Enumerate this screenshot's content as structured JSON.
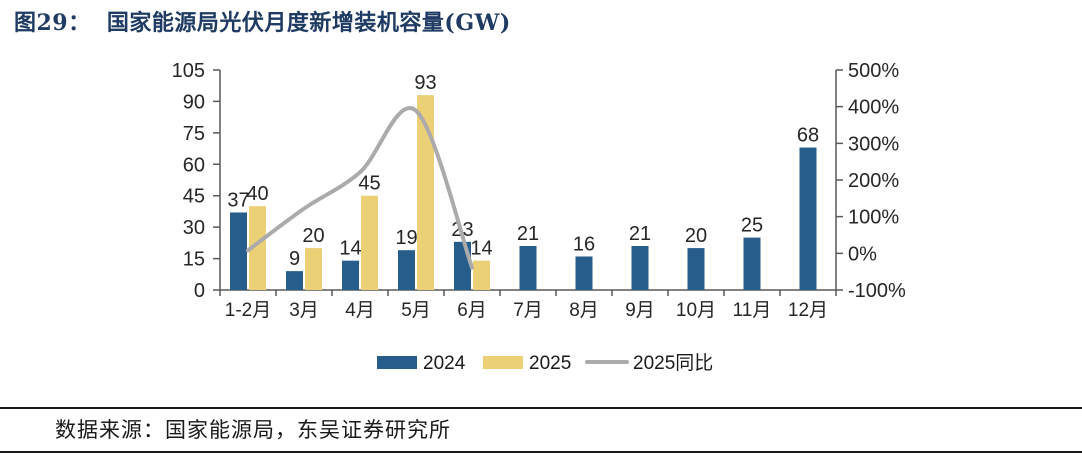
{
  "title": "图29：  国家能源局光伏月度新增装机容量(GW)",
  "source": "数据来源：国家能源局，东吴证券研究所",
  "colors": {
    "title_navy": "#1F3B63",
    "bar_2024": "#265D8B",
    "bar_2025": "#ECD076",
    "line_yoy": "#ABABAB",
    "axis": "#595959",
    "text": "#262626"
  },
  "chart_data": {
    "type": "bar",
    "title": "国家能源局光伏月度新增装机容量(GW)",
    "categories": [
      "1-2月",
      "3月",
      "4月",
      "5月",
      "6月",
      "7月",
      "8月",
      "9月",
      "10月",
      "11月",
      "12月"
    ],
    "series": [
      {
        "name": "2024",
        "type": "bar",
        "axis": "left",
        "color": "#265D8B",
        "values": [
          37,
          9,
          14,
          19,
          23,
          21,
          16,
          21,
          20,
          25,
          68
        ]
      },
      {
        "name": "2025",
        "type": "bar",
        "axis": "left",
        "color": "#ECD076",
        "values": [
          40,
          20,
          45,
          93,
          14,
          null,
          null,
          null,
          null,
          null,
          null
        ]
      },
      {
        "name": "2025同比",
        "type": "line",
        "axis": "right",
        "unit": "%",
        "color": "#ABABAB",
        "values": [
          8,
          122,
          221,
          389,
          -39,
          null,
          null,
          null,
          null,
          null,
          null
        ]
      }
    ],
    "left_axis": {
      "min": 0,
      "max": 105,
      "step": 15,
      "tick_labels": [
        "0",
        "15",
        "30",
        "45",
        "60",
        "75",
        "90",
        "105"
      ]
    },
    "right_axis": {
      "min": -100,
      "max": 500,
      "step": 100,
      "tick_labels": [
        "-100%",
        "0%",
        "100%",
        "200%",
        "300%",
        "400%",
        "500%"
      ]
    },
    "legend": {
      "position": "bottom",
      "items": [
        "2024",
        "2025",
        "2025同比"
      ]
    },
    "grid": false,
    "bar_labels_shown": true
  }
}
